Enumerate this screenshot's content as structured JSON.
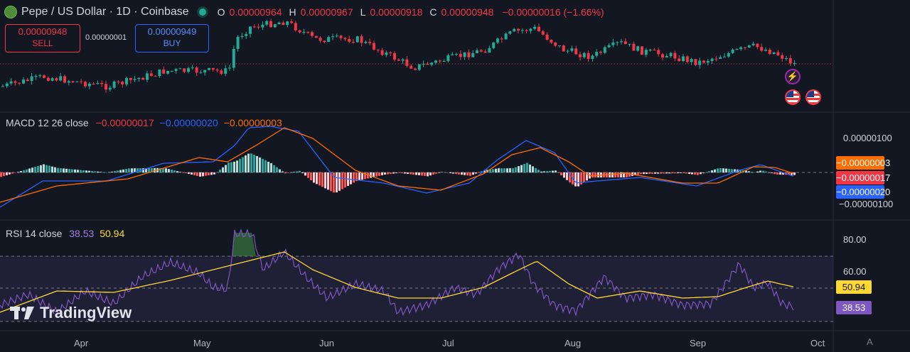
{
  "header": {
    "title": "Pepe / US Dollar · 1D · Coinbase",
    "o_label": "O",
    "o_value": "0.00000964",
    "h_label": "H",
    "h_value": "0.00000967",
    "l_label": "L",
    "l_value": "0.00000918",
    "c_label": "C",
    "c_value": "0.00000948",
    "change": "−0.00000016 (−1.66%)"
  },
  "trade": {
    "sell_price": "0.00000948",
    "sell_label": "SELL",
    "spread": "0.00000001",
    "buy_price": "0.00000949",
    "buy_label": "BUY"
  },
  "macd": {
    "label": "MACD 12 26 close",
    "hist_value": "−0.00000017",
    "macd_value": "−0.00000020",
    "signal_value": "−0.00000003",
    "axis_top": "0.00000100",
    "axis_bottom": "−0.00000100",
    "tag_signal": "−0.00000003",
    "tag_hist": "−0.00000017",
    "tag_macd": "−0.00000020"
  },
  "rsi": {
    "label": "RSI 14 close",
    "rsi_value": "38.53",
    "ma_value": "50.94",
    "axis_80": "80.00",
    "axis_60": "60.00",
    "tag_ma": "50.94",
    "tag_rsi": "38.53"
  },
  "time_axis": [
    "Apr",
    "May",
    "Jun",
    "Jul",
    "Aug",
    "Sep",
    "Oct"
  ],
  "watermark": "TradingView",
  "colors": {
    "up": "#22ab94",
    "down": "#f23645",
    "macd": "#2962ff",
    "signal": "#ff6d00",
    "rsi": "#7e57c2",
    "rsi_ma": "#fdd835",
    "bg": "#131722"
  },
  "icons": [
    "lightning-icon",
    "us-flag-icon",
    "tradingview-logo-icon",
    "auto-scale-icon"
  ]
}
